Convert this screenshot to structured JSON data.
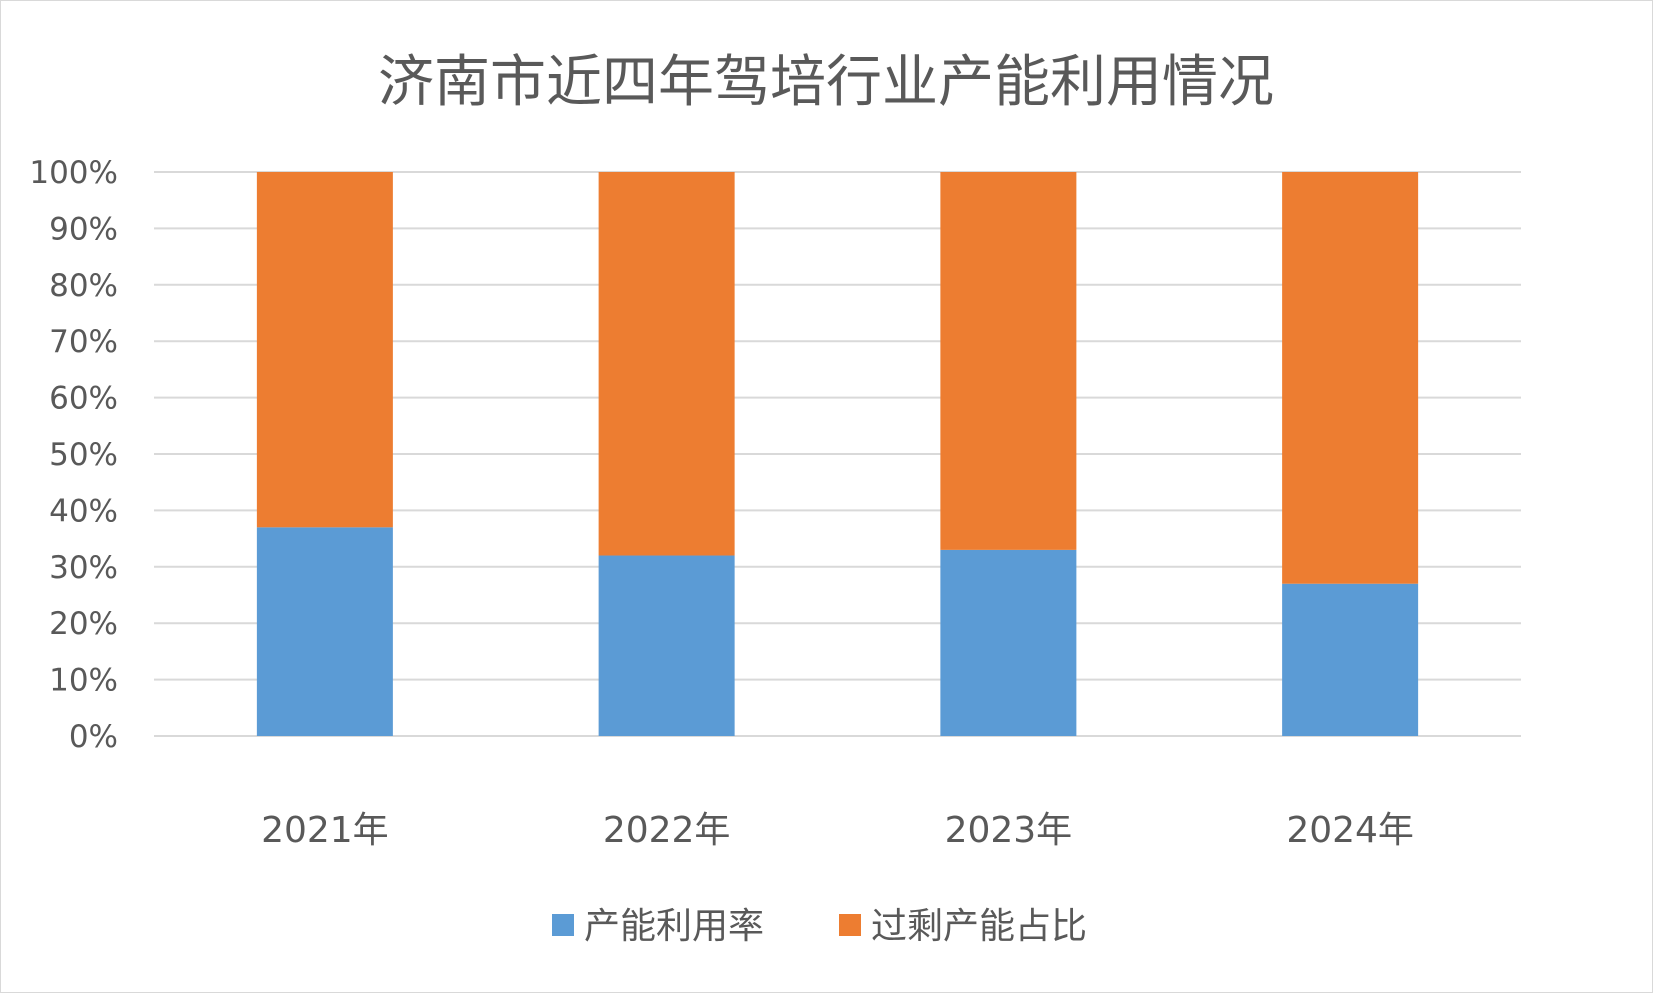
{
  "chart_data": {
    "type": "bar",
    "stacked": true,
    "title": "济南市近四年驾培行业产能利用情况",
    "categories": [
      "2021年",
      "2022年",
      "2023年",
      "2024年"
    ],
    "series": [
      {
        "name": "产能利用率",
        "color": "#5b9bd5",
        "values": [
          37,
          32,
          33,
          27
        ]
      },
      {
        "name": "过剩产能占比",
        "color": "#ed7d31",
        "values": [
          63,
          68,
          67,
          73
        ]
      }
    ],
    "ylim": [
      0,
      100
    ],
    "yticks": [
      "0%",
      "10%",
      "20%",
      "30%",
      "40%",
      "50%",
      "60%",
      "70%",
      "80%",
      "90%",
      "100%"
    ],
    "grid": true,
    "legend_position": "bottom"
  }
}
